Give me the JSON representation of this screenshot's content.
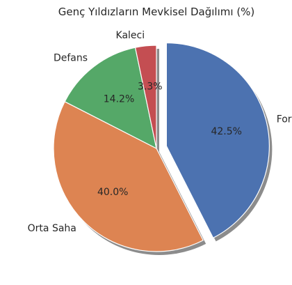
{
  "chart_data": {
    "type": "pie",
    "title": "Genç Yıldızların Mevkisel Dağılımı (%)",
    "start_angle_deg": 90,
    "direction": "clockwise",
    "shadow": true,
    "slices": [
      {
        "label": "Forvet",
        "value": 42.5,
        "pct_text": "42.5%",
        "color": "#4c72b0",
        "explode": 0.1
      },
      {
        "label": "Orta Saha",
        "value": 40.0,
        "pct_text": "40.0%",
        "color": "#dd8452",
        "explode": 0
      },
      {
        "label": "Defans",
        "value": 14.2,
        "pct_text": "14.2%",
        "color": "#55a868",
        "explode": 0
      },
      {
        "label": "Kaleci",
        "value": 3.3,
        "pct_text": "3.3%",
        "color": "#c44e52",
        "explode": 0
      }
    ]
  }
}
